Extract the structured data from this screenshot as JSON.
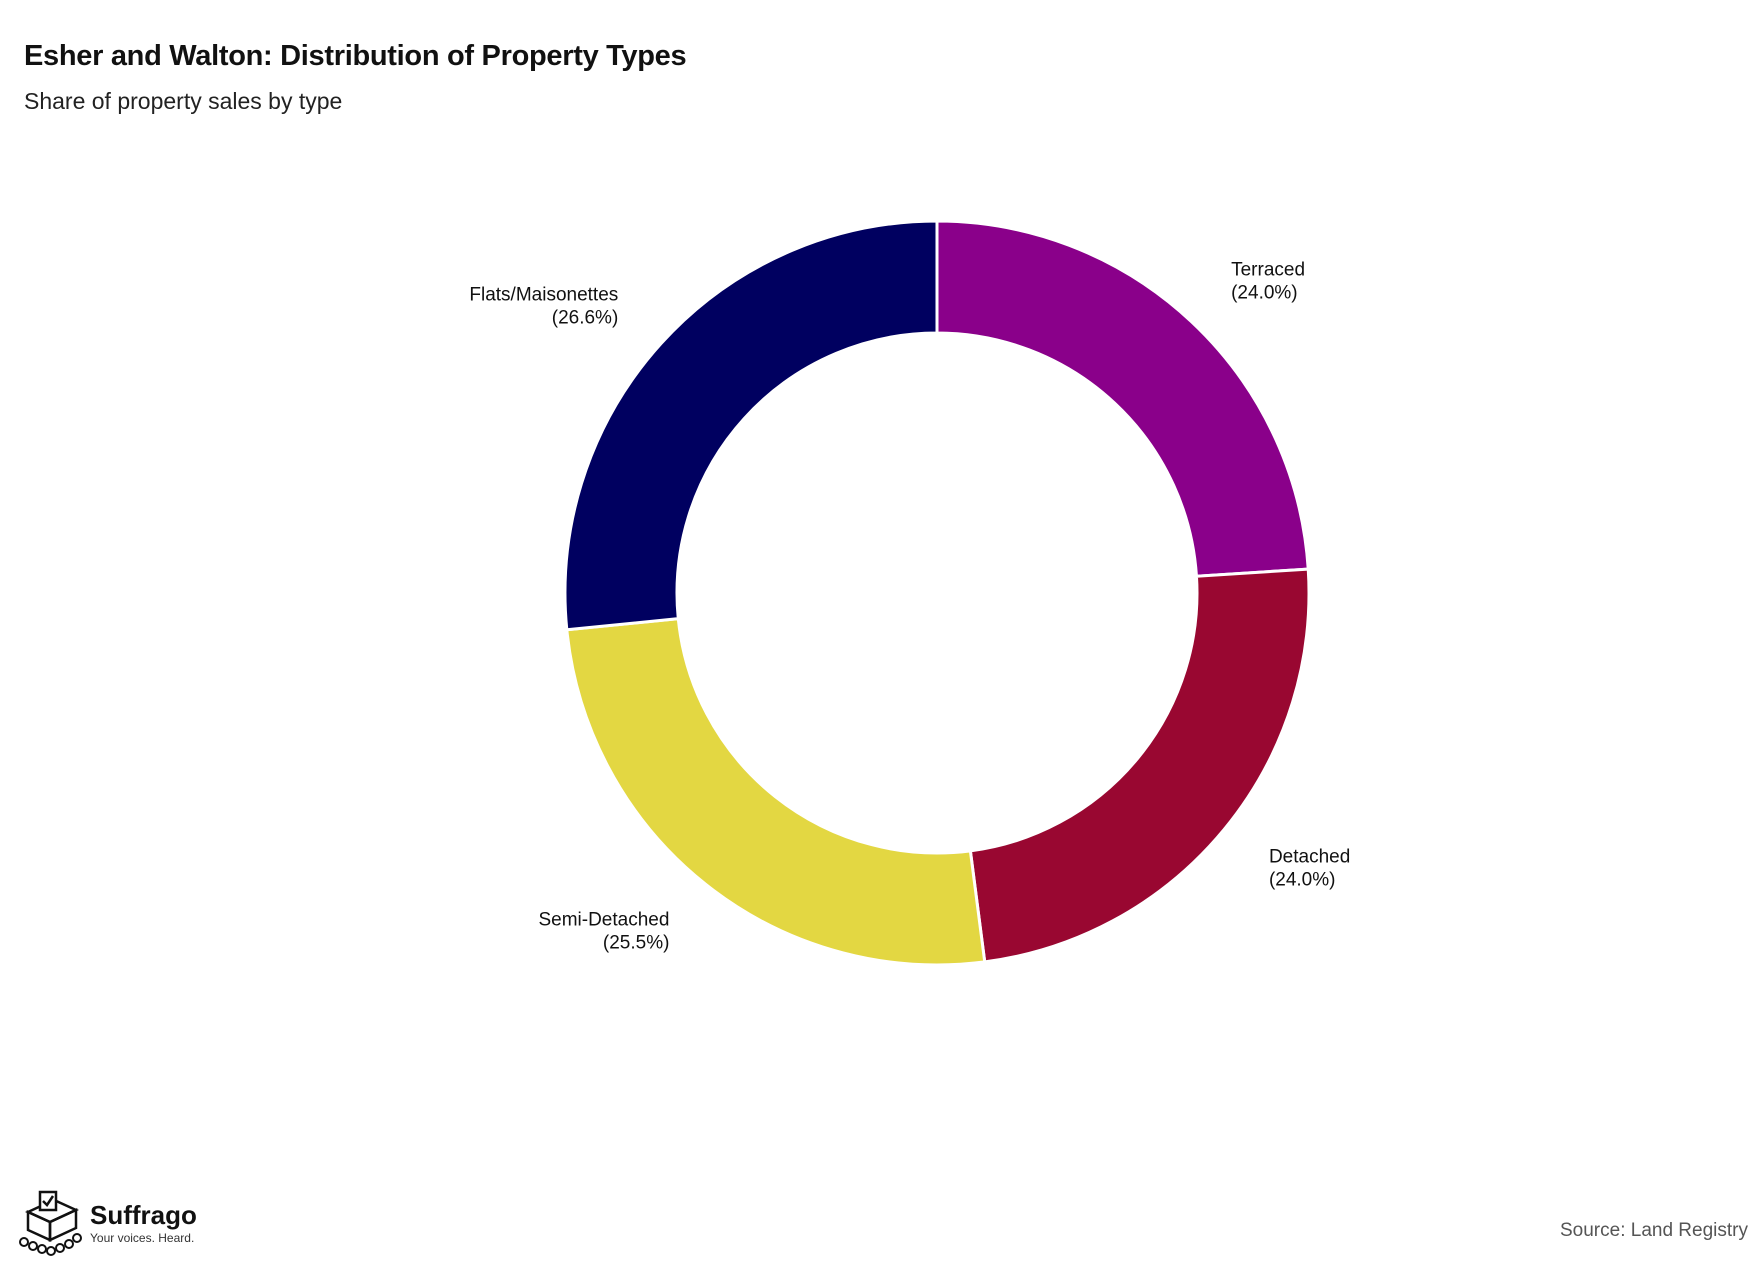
{
  "title": "Esher and Walton: Distribution of Property Types",
  "subtitle": "Share of property sales by type",
  "source": "Source: Land Registry",
  "brand": {
    "name": "Suffrago",
    "tagline": "Your voices. Heard."
  },
  "chart_data": {
    "type": "pie",
    "variant": "donut",
    "legend": "none",
    "labels": [
      {
        "category": "Terraced",
        "value": 24.0,
        "display": "(24.0%)",
        "color": "#8A008A"
      },
      {
        "category": "Detached",
        "value": 24.0,
        "display": "(24.0%)",
        "color": "#990731"
      },
      {
        "category": "Semi-Detached",
        "value": 25.5,
        "display": "(25.5%)",
        "color": "#E3D742"
      },
      {
        "category": "Flats/Maisonettes",
        "value": 26.6,
        "display": "(26.6%)",
        "color": "#000060"
      }
    ]
  }
}
